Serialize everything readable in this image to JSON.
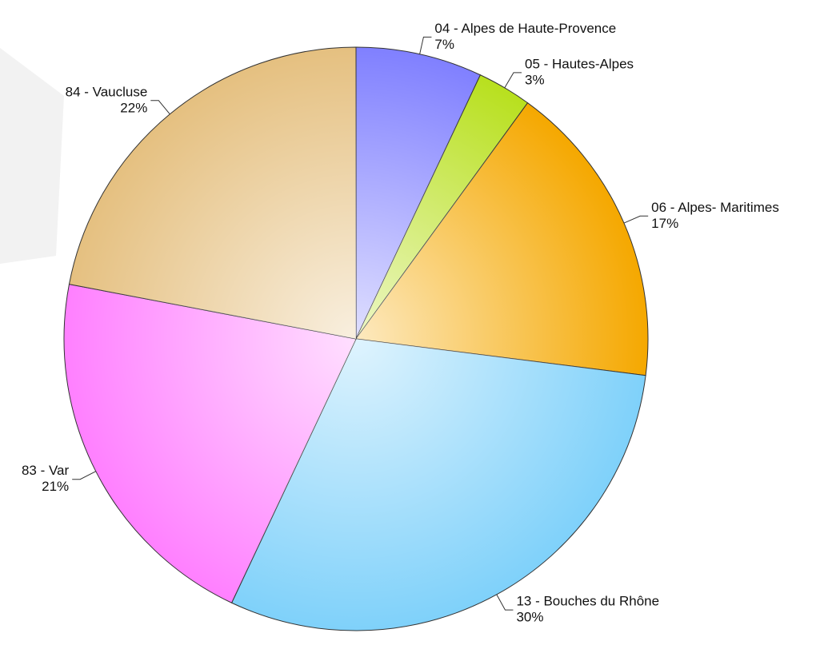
{
  "chart_data": {
    "type": "pie",
    "categories": [
      "04 - Alpes de Haute-Provence",
      "05 - Hautes-Alpes",
      "06 - Alpes- Maritimes",
      "13 - Bouches du Rhône",
      "83 - Var",
      "84 - Vaucluse"
    ],
    "values": [
      7,
      3,
      17,
      30,
      21,
      22
    ],
    "value_labels": [
      "7%",
      "3%",
      "17%",
      "30%",
      "21%",
      "22%"
    ],
    "colors": [
      "#8080ff",
      "#b8e01e",
      "#f5a800",
      "#7fd1fa",
      "#ff80ff",
      "#e5c080"
    ]
  }
}
